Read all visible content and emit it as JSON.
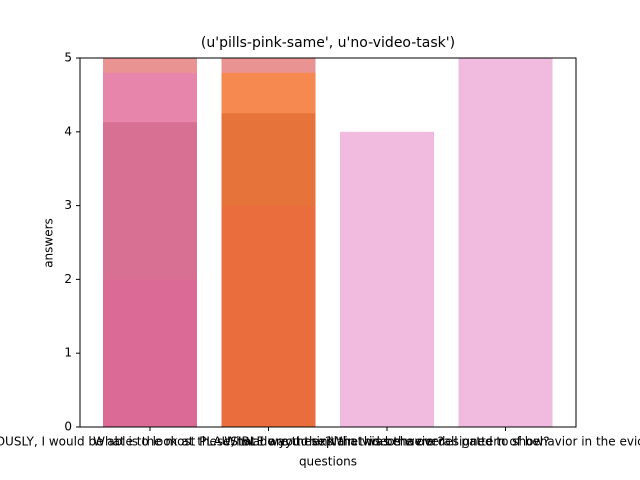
{
  "chart_data": {
    "type": "bar",
    "title": "(u'pills-pink-same', u'no-video-task')",
    "x_label": "questions",
    "y_label": "answers",
    "categories": [
      "SERIOUSLY, I would be able to look at these, twat are these?",
      "What is the most PLAUSIBLE way to explain this behavior?",
      "What do you think the videos were designed to show?",
      "What was the overall pattern of behavior in the evidence?"
    ],
    "series": [
      {
        "color": "#8c564b",
        "values": [
          4.13,
          4.25,
          0,
          0
        ]
      },
      {
        "color": "#e377c2",
        "values": [
          2,
          3,
          4,
          5
        ]
      },
      {
        "color": "#d62728",
        "values": [
          5,
          5,
          0,
          0
        ]
      },
      {
        "color": "#ff7f0e",
        "values": [
          0,
          4.8,
          0,
          0
        ]
      },
      {
        "color": "#e377c2",
        "values": [
          4.8,
          0,
          0,
          0
        ]
      }
    ],
    "alpha": 0.5,
    "ylim": [
      0,
      5
    ],
    "yticks": [
      0,
      1,
      2,
      3,
      4,
      5
    ]
  }
}
